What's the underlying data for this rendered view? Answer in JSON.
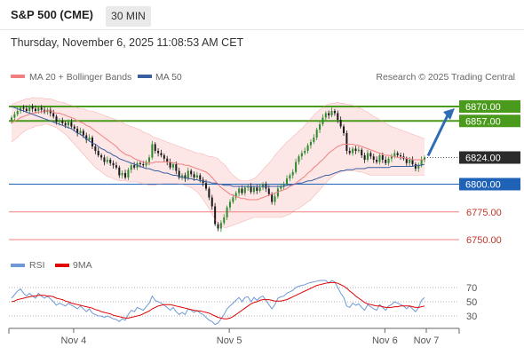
{
  "header": {
    "symbol": "S&P 500 (CME)",
    "timeframe": "30 MIN",
    "datetime": "Thursday, November 6, 2025 11:08:53 AM CET"
  },
  "credit": "Research © 2025 Trading Central",
  "colors": {
    "bollinger": "#f08080",
    "bollinger_fill": "#fde3e3",
    "ma50": "#3a5fa0",
    "candle_up": "#2e8b2e",
    "candle_down": "#1a1a1a",
    "resistance": "#4a9a1c",
    "support_blue": "#1f63b8",
    "support_red": "#f08080",
    "last_price_box": "#2b2b2b",
    "arrow": "#2f6cb5",
    "rsi": "#6f99d6",
    "rsi_ma": "#e00000"
  },
  "chart_data": [
    {
      "type": "candlestick",
      "title": "",
      "legend": [
        {
          "name": "MA 20 + Bollinger Bands",
          "color": "#f08080"
        },
        {
          "name": "MA 50",
          "color": "#3a5fa0"
        }
      ],
      "legend_position": "top-left",
      "x_ticks": [
        "Nov 4",
        "Nov 5",
        "Nov 6",
        "Nov 7"
      ],
      "ylim": [
        6738,
        6882
      ],
      "levels": [
        {
          "value": 6870.0,
          "label": "6870.00",
          "kind": "resistance",
          "color": "#4a9a1c"
        },
        {
          "value": 6857.0,
          "label": "6857.00",
          "kind": "resistance",
          "color": "#4a9a1c"
        },
        {
          "value": 6824.0,
          "label": "6824.00",
          "kind": "last_price",
          "color": "#2b2b2b"
        },
        {
          "value": 6800.0,
          "label": "6800.00",
          "kind": "pivot",
          "color": "#1f63b8"
        },
        {
          "value": 6775.0,
          "label": "6775.00",
          "kind": "support",
          "color": "#f08080"
        },
        {
          "value": 6750.0,
          "label": "6750.00",
          "kind": "support",
          "color": "#f08080"
        }
      ],
      "close": [
        6860,
        6863,
        6866,
        6869,
        6868,
        6866,
        6870,
        6868,
        6866,
        6869,
        6867,
        6865,
        6867,
        6864,
        6861,
        6856,
        6857,
        6855,
        6853,
        6856,
        6852,
        6850,
        6846,
        6848,
        6844,
        6840,
        6842,
        6834,
        6830,
        6826,
        6824,
        6820,
        6822,
        6819,
        6817,
        6815,
        6808,
        6810,
        6806,
        6813,
        6817,
        6815,
        6819,
        6818,
        6817,
        6820,
        6824,
        6836,
        6830,
        6828,
        6826,
        6823,
        6820,
        6815,
        6818,
        6812,
        6806,
        6808,
        6805,
        6812,
        6809,
        6806,
        6808,
        6804,
        6801,
        6796,
        6788,
        6780,
        6764,
        6760,
        6765,
        6770,
        6779,
        6784,
        6788,
        6792,
        6796,
        6792,
        6797,
        6798,
        6793,
        6797,
        6794,
        6797,
        6800,
        6796,
        6791,
        6784,
        6789,
        6796,
        6798,
        6800,
        6805,
        6808,
        6811,
        6820,
        6825,
        6828,
        6830,
        6835,
        6838,
        6842,
        6849,
        6854,
        6860,
        6864,
        6862,
        6866,
        6864,
        6858,
        6852,
        6846,
        6830,
        6828,
        6832,
        6830,
        6831,
        6826,
        6822,
        6828,
        6825,
        6822,
        6820,
        6826,
        6822,
        6819,
        6823,
        6825,
        6828,
        6826,
        6825,
        6823,
        6819,
        6822,
        6818,
        6814,
        6817,
        6822,
        6824
      ],
      "ma20": [
        6855,
        6857,
        6858,
        6860,
        6861,
        6862,
        6863,
        6864,
        6864,
        6865,
        6865,
        6866,
        6866,
        6866,
        6865,
        6864,
        6864,
        6863,
        6862,
        6861,
        6860,
        6859,
        6857,
        6856,
        6855,
        6853,
        6852,
        6850,
        6848,
        6846,
        6844,
        6842,
        6840,
        6838,
        6836,
        6834,
        6831,
        6829,
        6827,
        6826,
        6825,
        6823,
        6822,
        6821,
        6820,
        6819,
        6819,
        6819,
        6820,
        6820,
        6820,
        6820,
        6820,
        6820,
        6819,
        6819,
        6818,
        6818,
        6817,
        6817,
        6816,
        6815,
        6814,
        6813,
        6812,
        6811,
        6809,
        6806,
        6803,
        6800,
        6797,
        6795,
        6793,
        6791,
        6790,
        6789,
        6788,
        6787,
        6787,
        6786,
        6786,
        6786,
        6786,
        6787,
        6788,
        6789,
        6790,
        6791,
        6792,
        6793,
        6794,
        6795,
        6796,
        6798,
        6799,
        6801,
        6803,
        6805,
        6807,
        6810,
        6812,
        6815,
        6817,
        6820,
        6822,
        6825,
        6828,
        6830,
        6832,
        6834,
        6835,
        6836,
        6836,
        6836,
        6836,
        6835,
        6835,
        6834,
        6833,
        6832,
        6831,
        6830,
        6829,
        6828,
        6827,
        6826,
        6826,
        6825,
        6825,
        6824,
        6824,
        6824,
        6823,
        6823,
        6822,
        6822,
        6822,
        6822,
        6822
      ],
      "bb_upper": [
        6872,
        6873,
        6874,
        6875,
        6876,
        6877,
        6877,
        6878,
        6878,
        6878,
        6878,
        6877,
        6877,
        6877,
        6876,
        6875,
        6874,
        6874,
        6873,
        6872,
        6871,
        6870,
        6869,
        6868,
        6868,
        6867,
        6866,
        6866,
        6865,
        6864,
        6863,
        6862,
        6861,
        6860,
        6859,
        6858,
        6857,
        6856,
        6854,
        6853,
        6852,
        6851,
        6850,
        6849,
        6847,
        6846,
        6845,
        6843,
        6842,
        6841,
        6840,
        6839,
        6838,
        6837,
        6836,
        6835,
        6834,
        6833,
        6832,
        6831,
        6830,
        6829,
        6828,
        6828,
        6827,
        6826,
        6825,
        6825,
        6824,
        6823,
        6820,
        6818,
        6815,
        6811,
        6808,
        6806,
        6804,
        6803,
        6803,
        6803,
        6804,
        6805,
        6807,
        6810,
        6813,
        6816,
        6819,
        6822,
        6826,
        6829,
        6832,
        6835,
        6838,
        6840,
        6843,
        6845,
        6848,
        6850,
        6853,
        6856,
        6859,
        6862,
        6865,
        6867,
        6869,
        6871,
        6872,
        6873,
        6873,
        6874,
        6873,
        6873,
        6872,
        6872,
        6871,
        6870,
        6869,
        6868,
        6866,
        6865,
        6863,
        6861,
        6860,
        6858,
        6857,
        6855,
        6853,
        6852,
        6851,
        6850,
        6849,
        6848,
        6847,
        6846,
        6845,
        6844,
        6843,
        6842,
        6841
      ],
      "bb_lower": [
        6838,
        6840,
        6842,
        6845,
        6847,
        6849,
        6850,
        6851,
        6852,
        6853,
        6853,
        6854,
        6854,
        6853,
        6852,
        6851,
        6849,
        6847,
        6845,
        6842,
        6839,
        6836,
        6833,
        6830,
        6827,
        6824,
        6821,
        6818,
        6815,
        6813,
        6811,
        6809,
        6807,
        6806,
        6805,
        6804,
        6803,
        6803,
        6803,
        6802,
        6802,
        6802,
        6802,
        6801,
        6800,
        6800,
        6799,
        6799,
        6799,
        6800,
        6800,
        6801,
        6801,
        6801,
        6801,
        6801,
        6800,
        6800,
        6799,
        6798,
        6797,
        6795,
        6793,
        6790,
        6786,
        6782,
        6778,
        6773,
        6768,
        6764,
        6762,
        6761,
        6761,
        6762,
        6763,
        6764,
        6765,
        6766,
        6767,
        6768,
        6769,
        6770,
        6770,
        6770,
        6770,
        6770,
        6770,
        6770,
        6770,
        6770,
        6770,
        6771,
        6772,
        6773,
        6775,
        6777,
        6778,
        6780,
        6782,
        6784,
        6786,
        6789,
        6792,
        6795,
        6798,
        6801,
        6804,
        6806,
        6808,
        6810,
        6811,
        6812,
        6812,
        6812,
        6812,
        6812,
        6811,
        6811,
        6810,
        6809,
        6808,
        6808,
        6808,
        6808,
        6808,
        6808,
        6808,
        6808,
        6808,
        6808,
        6808,
        6808,
        6808,
        6808,
        6808,
        6808,
        6808,
        6808,
        6808
      ],
      "ma50": [
        6870,
        6869,
        6868,
        6867,
        6866,
        6865,
        6864,
        6863,
        6862,
        6861,
        6860,
        6859,
        6858,
        6857,
        6856,
        6855,
        6854,
        6853,
        6852,
        6851,
        6850,
        6848,
        6846,
        6845,
        6843,
        6841,
        6839,
        6837,
        6836,
        6834,
        6832,
        6831,
        6829,
        6828,
        6826,
        6825,
        6823,
        6822,
        6821,
        6820,
        6819,
        6818,
        6817,
        6816,
        6815,
        6814,
        6814,
        6813,
        6812,
        6812,
        6811,
        6810,
        6810,
        6809,
        6808,
        6808,
        6807,
        6806,
        6806,
        6805,
        6805,
        6804,
        6804,
        6803,
        6803,
        6802,
        6802,
        6801,
        6801,
        6800,
        6800,
        6799,
        6799,
        6799,
        6798,
        6798,
        6798,
        6798,
        6798,
        6798,
        6798,
        6798,
        6798,
        6798,
        6798,
        6798,
        6798,
        6798,
        6798,
        6798,
        6798,
        6798,
        6799,
        6799,
        6800,
        6800,
        6801,
        6801,
        6802,
        6803,
        6803,
        6804,
        6805,
        6806,
        6807,
        6808,
        6808,
        6809,
        6810,
        6811,
        6812,
        6812,
        6813,
        6813,
        6813,
        6814,
        6814,
        6814,
        6814,
        6815,
        6815,
        6815,
        6815,
        6815,
        6815,
        6815,
        6815,
        6816,
        6816,
        6816,
        6816,
        6816,
        6816,
        6816,
        6816,
        6817,
        6817,
        6817,
        6818
      ]
    },
    {
      "type": "line",
      "title": "",
      "legend": [
        {
          "name": "RSI",
          "color": "#6f99d6"
        },
        {
          "name": "9MA",
          "color": "#e00000"
        }
      ],
      "legend_position": "top-left",
      "ylim": [
        15,
        85
      ],
      "y_ticks": [
        70,
        50,
        30
      ],
      "rsi": [
        55,
        60,
        65,
        68,
        62,
        58,
        62,
        58,
        55,
        62,
        58,
        55,
        58,
        54,
        50,
        45,
        48,
        46,
        44,
        48,
        45,
        43,
        40,
        44,
        40,
        36,
        40,
        34,
        32,
        30,
        30,
        28,
        30,
        28,
        26,
        25,
        22,
        26,
        24,
        32,
        38,
        36,
        42,
        40,
        38,
        43,
        48,
        58,
        52,
        50,
        48,
        45,
        42,
        38,
        42,
        36,
        32,
        35,
        32,
        40,
        38,
        35,
        38,
        34,
        32,
        28,
        24,
        22,
        18,
        20,
        26,
        32,
        40,
        44,
        48,
        52,
        56,
        50,
        56,
        57,
        50,
        56,
        52,
        56,
        58,
        52,
        46,
        40,
        46,
        55,
        57,
        58,
        62,
        64,
        66,
        70,
        72,
        73,
        74,
        76,
        77,
        78,
        79,
        80,
        80,
        80,
        76,
        80,
        78,
        70,
        62,
        56,
        44,
        42,
        48,
        45,
        47,
        42,
        38,
        46,
        43,
        40,
        38,
        46,
        42,
        38,
        44,
        46,
        50,
        48,
        46,
        44,
        40,
        44,
        40,
        36,
        42,
        52,
        56
      ],
      "ma9": [
        50,
        51,
        53,
        54,
        55,
        56,
        57,
        58,
        58,
        59,
        59,
        59,
        58,
        58,
        57,
        55,
        54,
        53,
        51,
        50,
        48,
        47,
        46,
        45,
        44,
        43,
        42,
        41,
        39,
        38,
        36,
        35,
        34,
        33,
        31,
        30,
        29,
        28,
        27,
        27,
        28,
        29,
        30,
        31,
        33,
        35,
        37,
        40,
        42,
        44,
        45,
        46,
        46,
        46,
        45,
        44,
        43,
        42,
        41,
        40,
        39,
        38,
        37,
        37,
        36,
        35,
        34,
        32,
        30,
        28,
        27,
        26,
        26,
        27,
        29,
        32,
        35,
        38,
        41,
        44,
        47,
        49,
        50,
        52,
        53,
        53,
        53,
        52,
        51,
        51,
        51,
        52,
        53,
        55,
        57,
        59,
        61,
        63,
        65,
        67,
        69,
        71,
        73,
        74,
        75,
        76,
        77,
        77,
        77,
        76,
        74,
        72,
        69,
        65,
        62,
        58,
        55,
        52,
        49,
        47,
        46,
        45,
        44,
        44,
        43,
        42,
        42,
        42,
        43,
        43,
        44,
        44,
        44,
        44,
        43,
        42,
        42,
        43,
        44
      ]
    }
  ]
}
